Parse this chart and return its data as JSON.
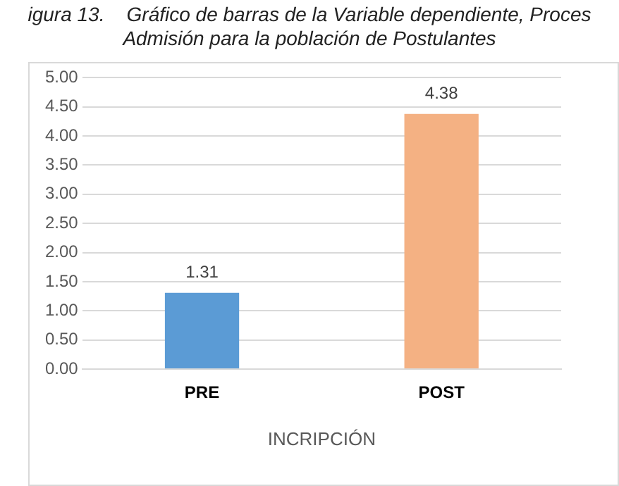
{
  "chart_data": {
    "type": "bar",
    "title": "igura 13.    Gráfico de barras de la Variable dependiente, Proces",
    "subtitle": "Admisión para la población de Postulantes",
    "xlabel": "INCRIPCIÓN",
    "categories": [
      "PRE",
      "POST"
    ],
    "values": [
      1.31,
      4.38
    ],
    "colors": [
      "#5b9bd5",
      "#f4b183"
    ],
    "ylim": [
      0,
      5
    ],
    "yticks": [
      {
        "value": 0,
        "label": "0.00"
      },
      {
        "value": 0.5,
        "label": "0.50"
      },
      {
        "value": 1,
        "label": "1.00"
      },
      {
        "value": 1.5,
        "label": "1.50"
      },
      {
        "value": 2,
        "label": "2.00"
      },
      {
        "value": 2.5,
        "label": "2.50"
      },
      {
        "value": 3,
        "label": "3.00"
      },
      {
        "value": 3.5,
        "label": "3.50"
      },
      {
        "value": 4,
        "label": "4.00"
      },
      {
        "value": 4.5,
        "label": "4.50"
      },
      {
        "value": 5,
        "label": "5.00"
      }
    ],
    "grid": "y",
    "data_labels": true,
    "legend": false
  }
}
